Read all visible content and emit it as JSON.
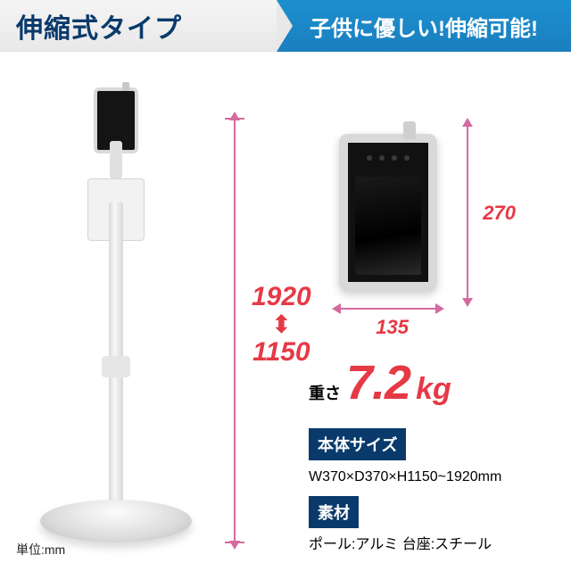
{
  "header": {
    "left": "伸縮式タイプ",
    "right": "子供に優しい!伸縮可能!"
  },
  "heights": {
    "max": "1920",
    "min": "1150"
  },
  "device": {
    "height": "270",
    "width": "135"
  },
  "weight": {
    "label": "重さ",
    "value": "7.2",
    "unit": "kg"
  },
  "size": {
    "tag": "本体サイズ",
    "value": "W370×D370×H1150~1920mm"
  },
  "material": {
    "tag": "素材",
    "value": "ポール:アルミ 台座:スチール"
  },
  "unit_note": "単位:mm",
  "colors": {
    "navy": "#0a3a6b",
    "blue_grad_top": "#1d8fcf",
    "red": "#e63946",
    "pink_line": "#d46aa0"
  }
}
